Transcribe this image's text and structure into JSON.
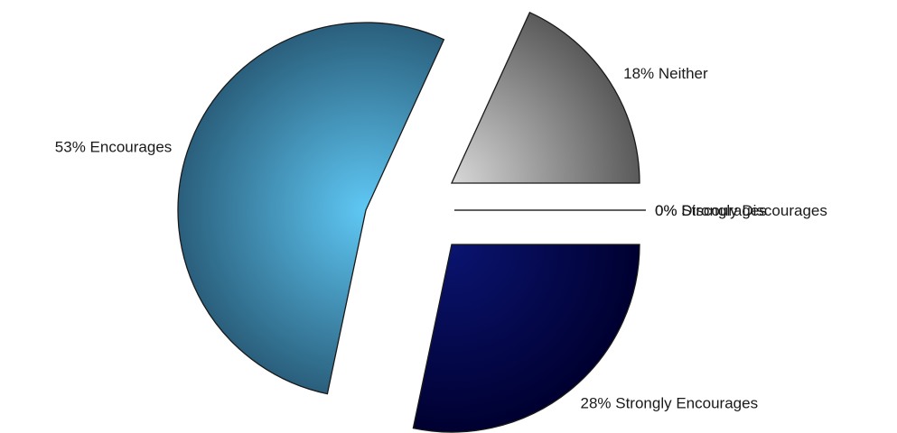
{
  "chart_data": {
    "type": "pie",
    "exploded": true,
    "slices": [
      {
        "label": "53% Encourages",
        "value": 53,
        "color": "#5fc8f5",
        "edge_color": "#2a5f7c"
      },
      {
        "label": "18% Neither",
        "value": 18,
        "color": "#d8d8d8",
        "edge_color": "#5a5a5a"
      },
      {
        "label": "0% Strongly Discourages",
        "value": 0,
        "color": "#888888",
        "edge_color": "#000000"
      },
      {
        "label": "0% Discourages",
        "value": 0,
        "color": "#888888",
        "edge_color": "#000000"
      },
      {
        "label": "28% Strongly Encourages",
        "value": 28,
        "color": "#0a1470",
        "edge_color": "#000030"
      }
    ]
  }
}
